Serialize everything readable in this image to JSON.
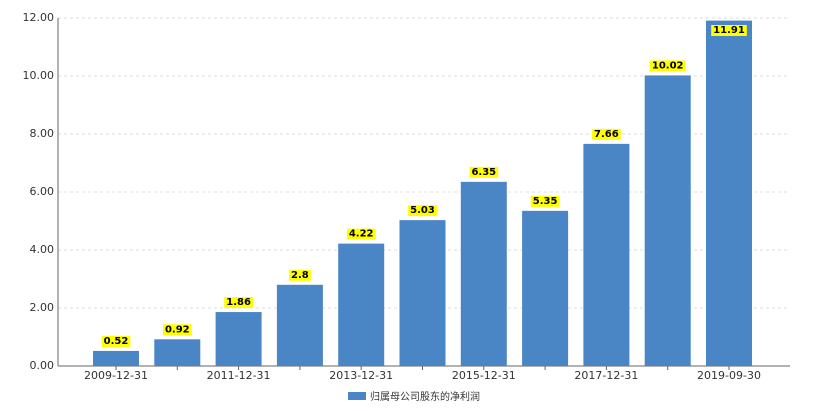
{
  "chart_data": {
    "type": "bar",
    "categories": [
      "2009-12-31",
      null,
      "2011-12-31",
      null,
      "2013-12-31",
      null,
      "2015-12-31",
      null,
      "2017-12-31",
      null,
      "2019-09-30"
    ],
    "series": [
      {
        "name": "归属母公司股东的净利润",
        "color": "#4a85c5",
        "values": [
          0.52,
          0.92,
          1.86,
          2.8,
          4.22,
          5.03,
          6.35,
          5.35,
          7.66,
          10.02,
          11.91
        ]
      }
    ],
    "ylim": [
      0,
      12
    ],
    "yticks": [
      {
        "value": 0,
        "label": "0.00"
      },
      {
        "value": 2,
        "label": "2.00"
      },
      {
        "value": 4,
        "label": "4.00"
      },
      {
        "value": 6,
        "label": "6.00"
      },
      {
        "value": 8,
        "label": "8.00"
      },
      {
        "value": 10,
        "label": "10.00"
      },
      {
        "value": 12,
        "label": "12.00"
      }
    ],
    "grid": true,
    "legend": "bottom"
  }
}
